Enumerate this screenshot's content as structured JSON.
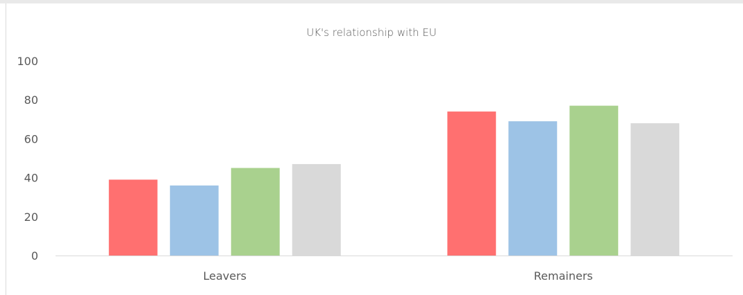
{
  "chart_data": {
    "type": "bar",
    "title": "UK's relationship with EU",
    "categories": [
      "Leavers",
      "Remainers"
    ],
    "series": [
      {
        "values": [
          39,
          74
        ],
        "color": "#ff7070"
      },
      {
        "values": [
          36,
          69
        ],
        "color": "#9dc3e6"
      },
      {
        "values": [
          45,
          77
        ],
        "color": "#a9d18e"
      },
      {
        "values": [
          47,
          68
        ],
        "color": "#d9d9d9"
      }
    ],
    "ylim": [
      0,
      100
    ],
    "yticks": [
      0,
      20,
      40,
      60,
      80,
      100
    ],
    "grid": false,
    "legend": "none"
  }
}
